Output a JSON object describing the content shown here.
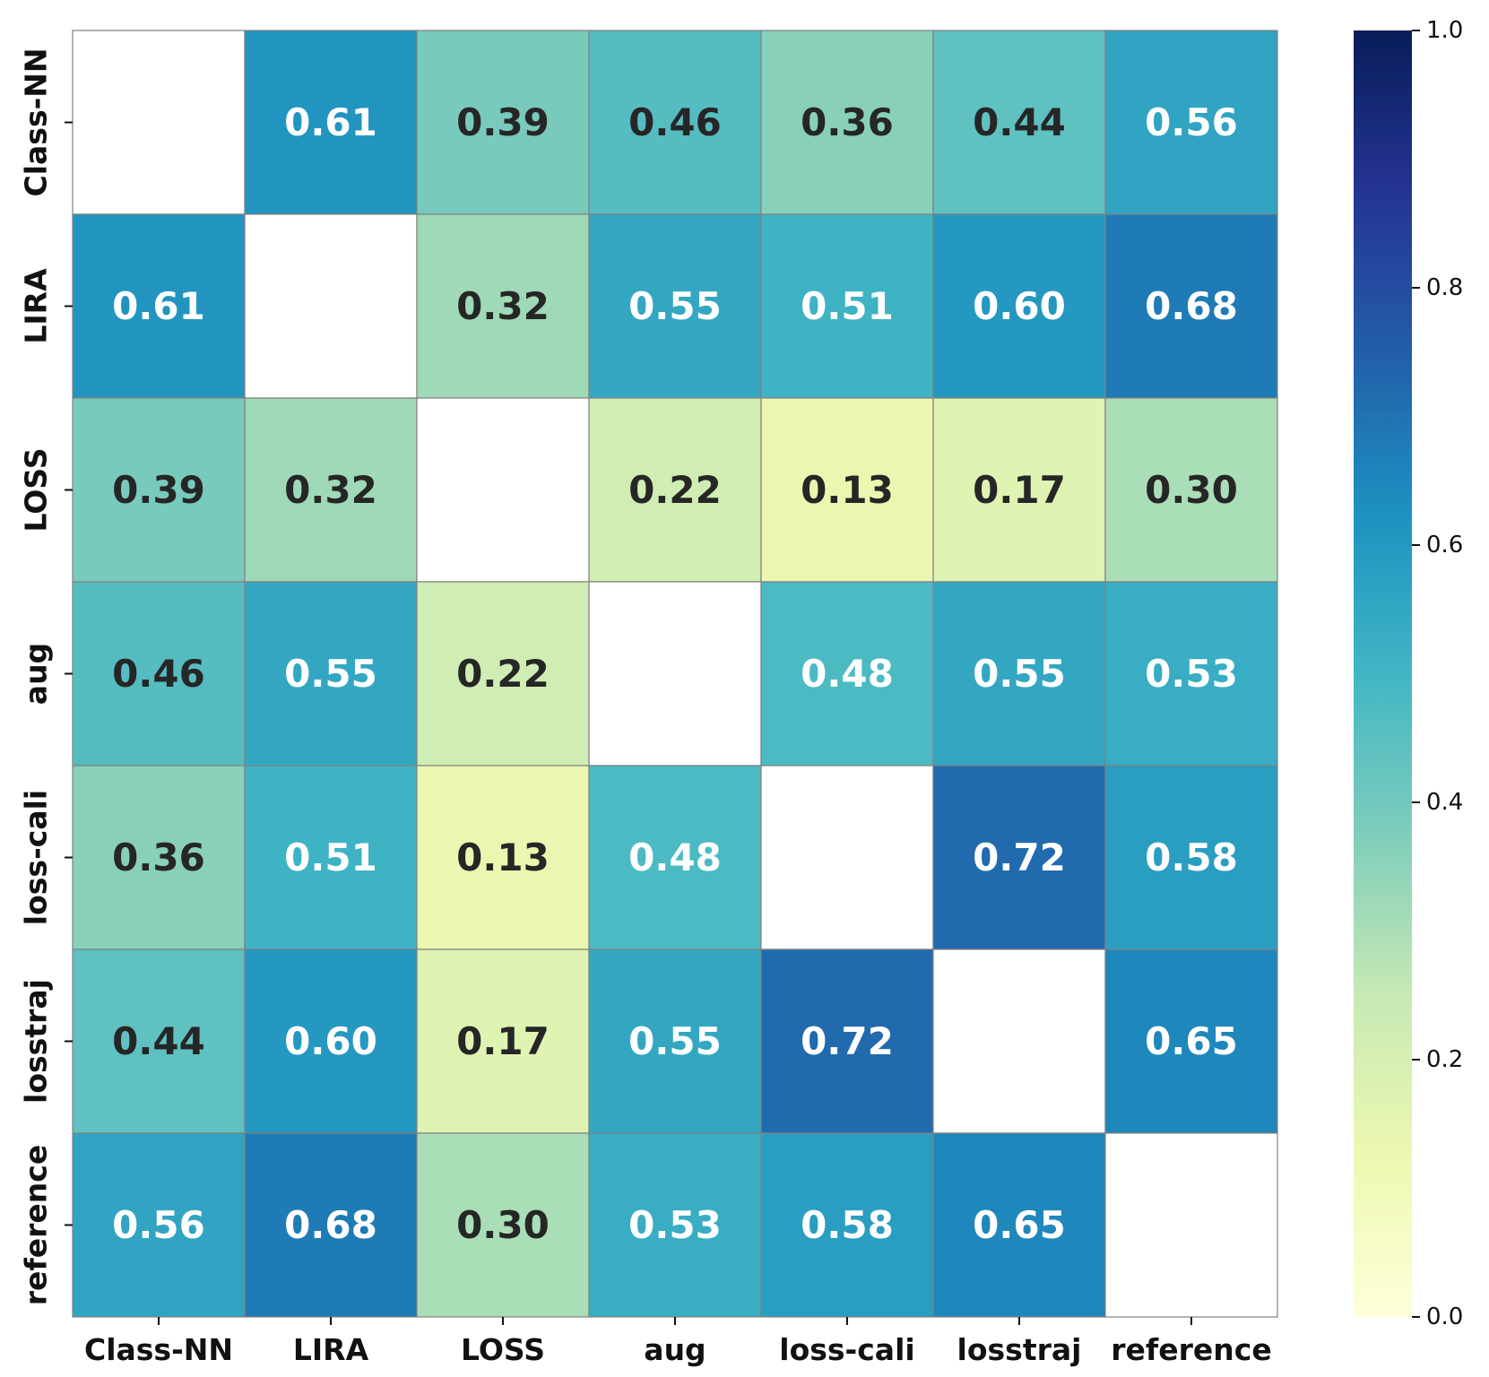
{
  "chart_data": {
    "type": "heatmap",
    "title": "",
    "xlabel": "",
    "ylabel": "",
    "categories": [
      "Class-NN",
      "LIRA",
      "LOSS",
      "aug",
      "loss-cali",
      "losstraj",
      "reference"
    ],
    "matrix": [
      [
        null,
        0.61,
        0.39,
        0.46,
        0.36,
        0.44,
        0.56
      ],
      [
        0.61,
        null,
        0.32,
        0.55,
        0.51,
        0.6,
        0.68
      ],
      [
        0.39,
        0.32,
        null,
        0.22,
        0.13,
        0.17,
        0.3
      ],
      [
        0.46,
        0.55,
        0.22,
        null,
        0.48,
        0.55,
        0.53
      ],
      [
        0.36,
        0.51,
        0.13,
        0.48,
        null,
        0.72,
        0.58
      ],
      [
        0.44,
        0.6,
        0.17,
        0.55,
        0.72,
        null,
        0.65
      ],
      [
        0.56,
        0.68,
        0.3,
        0.53,
        0.58,
        0.65,
        null
      ]
    ],
    "value_range": [
      0.0,
      1.0
    ],
    "colormap": "YlGnBu",
    "colorbar": {
      "ticks": [
        0.0,
        0.2,
        0.4,
        0.6,
        0.8,
        1.0
      ],
      "tick_labels": [
        "0.0",
        "0.2",
        "0.4",
        "0.6",
        "0.8",
        "1.0"
      ],
      "position": "right"
    },
    "colors": {
      "dark_text": "#262626",
      "light_text": "#ffffff",
      "grid": "#808080"
    }
  }
}
